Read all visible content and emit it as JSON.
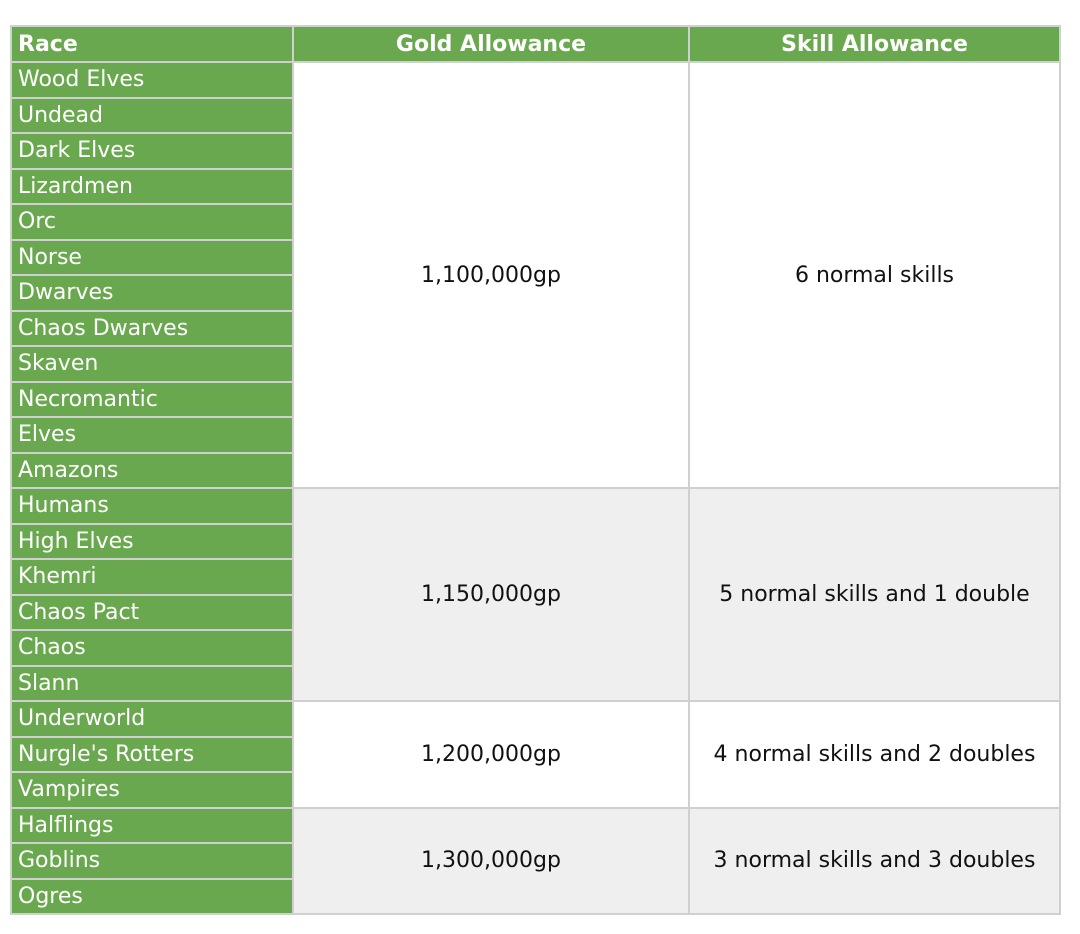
{
  "header": {
    "race": "Race",
    "gold": "Gold Allowance",
    "skill": "Skill Allowance"
  },
  "groups": [
    {
      "gold": "1,100,000gp",
      "skill": "6 normal skills",
      "races": [
        "Wood Elves",
        "Undead",
        "Dark Elves",
        "Lizardmen",
        "Orc",
        "Norse",
        "Dwarves",
        "Chaos Dwarves",
        "Skaven",
        "Necromantic",
        "Elves",
        "Amazons"
      ]
    },
    {
      "gold": "1,150,000gp",
      "skill": "5 normal skills and 1 double",
      "races": [
        "Humans",
        "High Elves",
        "Khemri",
        "Chaos Pact",
        "Chaos",
        "Slann"
      ]
    },
    {
      "gold": "1,200,000gp",
      "skill": "4 normal skills and 2 doubles",
      "races": [
        "Underworld",
        "Nurgle's Rotters",
        "Vampires"
      ]
    },
    {
      "gold": "1,300,000gp",
      "skill": "3 normal skills and 3 doubles",
      "races": [
        "Halflings",
        "Goblins",
        "Ogres"
      ]
    }
  ]
}
